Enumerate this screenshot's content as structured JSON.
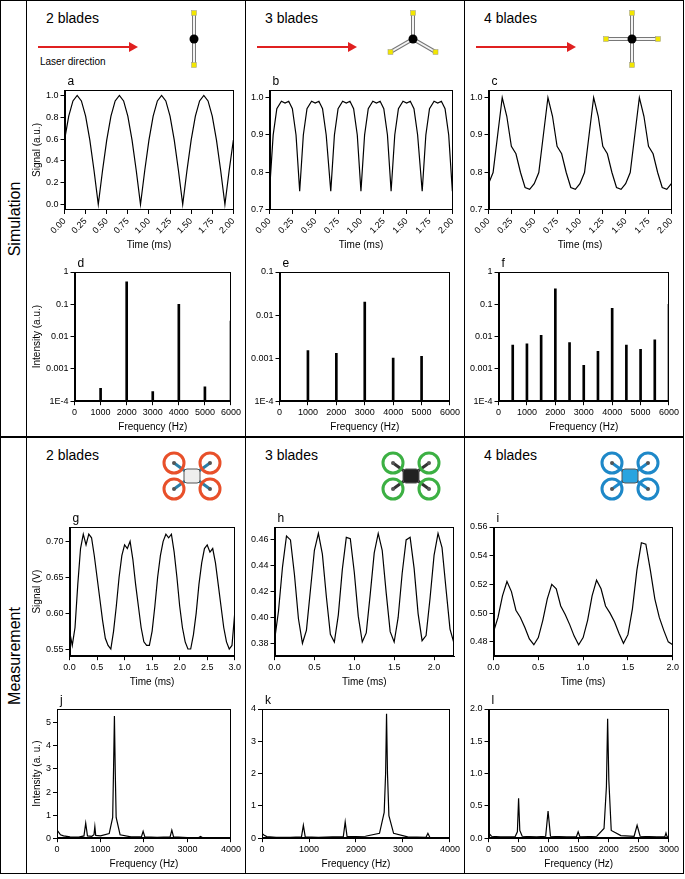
{
  "sections": [
    {
      "label": "Simulation",
      "headers": [
        "2 blades",
        "3 blades",
        "4 blades"
      ],
      "annotation": "Laser direction"
    },
    {
      "label": "Measurement",
      "headers": [
        "2 blades",
        "3 blades",
        "4 blades"
      ]
    }
  ],
  "chart_data": [
    {
      "panel": "a",
      "type": "line",
      "x_label": "Time (ms)",
      "y_label": "Signal (a.u.)",
      "color": "#000000",
      "grid": false,
      "x": [
        0,
        0.05,
        0.1,
        0.15,
        0.2,
        0.25,
        0.3,
        0.35,
        0.4,
        0.45,
        0.5,
        0.55,
        0.6,
        0.65,
        0.7,
        0.75,
        0.8,
        0.85,
        0.9,
        0.95,
        1,
        1.05,
        1.1,
        1.15,
        1.2,
        1.25,
        1.3,
        1.35,
        1.4,
        1.45,
        1.5,
        1.55,
        1.6,
        1.65,
        1.7,
        1.75,
        1.8,
        1.85,
        1.9,
        1.95,
        2
      ],
      "values": [
        0.59,
        0.81,
        0.95,
        1.0,
        0.95,
        0.81,
        0.59,
        0.31,
        0,
        0.31,
        0.59,
        0.81,
        0.95,
        1.0,
        0.95,
        0.81,
        0.59,
        0.31,
        0,
        0.31,
        0.59,
        0.81,
        0.95,
        1.0,
        0.95,
        0.81,
        0.59,
        0.31,
        0,
        0.31,
        0.59,
        0.81,
        0.95,
        1.0,
        0.95,
        0.81,
        0.59,
        0.31,
        0,
        0.31,
        0.59
      ],
      "xlim": [
        0,
        2
      ],
      "xticks": [
        {
          "value": 0,
          "label": "0.00"
        },
        0.25,
        {
          "value": 0.5,
          "label": "0.50"
        },
        0.75,
        {
          "value": 1,
          "label": "1.00"
        },
        1.25,
        {
          "value": 1.5,
          "label": "1.50"
        },
        1.75,
        {
          "value": 2,
          "label": "2.00"
        }
      ],
      "ylim": [
        -0.05,
        1.05
      ],
      "yticks": [
        {
          "value": 0,
          "label": "0.0"
        },
        0.2,
        0.4,
        0.6,
        0.8,
        {
          "value": 1,
          "label": "1.0"
        }
      ]
    },
    {
      "panel": "b",
      "type": "line",
      "x_label": "Time (ms)",
      "color": "#000000",
      "grid": false,
      "x": [
        0,
        0.04,
        0.08,
        0.13,
        0.17,
        0.21,
        0.25,
        0.29,
        0.33,
        0.37,
        0.41,
        0.46,
        0.5,
        0.54,
        0.58,
        0.62,
        0.67,
        0.71,
        0.75,
        0.8,
        0.84,
        0.88,
        0.92,
        0.96,
        1,
        1.04,
        1.08,
        1.13,
        1.17,
        1.21,
        1.25,
        1.29,
        1.33,
        1.37,
        1.41,
        1.46,
        1.5,
        1.54,
        1.58,
        1.62,
        1.67,
        1.71,
        1.75,
        1.8,
        1.84,
        1.88,
        1.92,
        1.96,
        2
      ],
      "values": [
        0.75,
        0.9,
        0.97,
        0.99,
        0.985,
        0.99,
        0.97,
        0.9,
        0.75,
        0.9,
        0.97,
        0.99,
        0.985,
        0.99,
        0.97,
        0.9,
        0.75,
        0.9,
        0.97,
        0.99,
        0.985,
        0.99,
        0.97,
        0.9,
        0.75,
        0.9,
        0.97,
        0.99,
        0.985,
        0.99,
        0.97,
        0.9,
        0.75,
        0.9,
        0.97,
        0.99,
        0.985,
        0.99,
        0.97,
        0.9,
        0.75,
        0.9,
        0.97,
        0.99,
        0.985,
        0.99,
        0.97,
        0.9,
        0.75
      ],
      "xlim": [
        0,
        2
      ],
      "xticks": [
        {
          "value": 0,
          "label": "0.00"
        },
        0.25,
        {
          "value": 0.5,
          "label": "0.50"
        },
        0.75,
        {
          "value": 1,
          "label": "1.00"
        },
        1.25,
        {
          "value": 1.5,
          "label": "1.50"
        },
        1.75,
        {
          "value": 2,
          "label": "2.00"
        }
      ],
      "ylim": [
        0.7,
        1.02
      ],
      "yticks": [
        0.7,
        0.8,
        0.9,
        {
          "value": 1,
          "label": "1.0"
        }
      ]
    },
    {
      "panel": "c",
      "type": "line",
      "x_label": "Time (ms)",
      "color": "#000000",
      "grid": false,
      "x": [
        0,
        0.05,
        0.1,
        0.15,
        0.2,
        0.25,
        0.3,
        0.35,
        0.4,
        0.45,
        0.5,
        0.55,
        0.6,
        0.65,
        0.7,
        0.75,
        0.8,
        0.85,
        0.9,
        0.95,
        1,
        1.05,
        1.1,
        1.15,
        1.2,
        1.25,
        1.3,
        1.35,
        1.4,
        1.45,
        1.5,
        1.55,
        1.6,
        1.65,
        1.7,
        1.75,
        1.8,
        1.85,
        1.9,
        1.95,
        2
      ],
      "values": [
        0.77,
        0.8,
        0.9,
        1.0,
        0.95,
        0.87,
        0.85,
        0.8,
        0.76,
        0.755,
        0.77,
        0.8,
        0.9,
        1.0,
        0.95,
        0.87,
        0.85,
        0.8,
        0.76,
        0.755,
        0.77,
        0.8,
        0.9,
        1.0,
        0.95,
        0.87,
        0.85,
        0.8,
        0.76,
        0.755,
        0.77,
        0.8,
        0.9,
        1.0,
        0.95,
        0.87,
        0.85,
        0.8,
        0.76,
        0.755,
        0.77
      ],
      "xlim": [
        0,
        2
      ],
      "xticks": [
        {
          "value": 0,
          "label": "0.00"
        },
        0.25,
        {
          "value": 0.5,
          "label": "0.50"
        },
        0.75,
        {
          "value": 1,
          "label": "1.00"
        },
        1.25,
        {
          "value": 1.5,
          "label": "1.50"
        },
        1.75,
        {
          "value": 2,
          "label": "2.00"
        }
      ],
      "ylim": [
        0.7,
        1.02
      ],
      "yticks": [
        0.7,
        0.8,
        0.9,
        {
          "value": 1,
          "label": "1.0"
        }
      ]
    },
    {
      "panel": "d",
      "type": "bar",
      "log": "y",
      "x_label": "Frequency (Hz)",
      "y_label": "Intensity (a.u.)",
      "color": "#000000",
      "grid": false,
      "x": [
        1000,
        2000,
        3000,
        4000,
        5000,
        6000
      ],
      "values": [
        0.00025,
        0.5,
        0.0002,
        0.1,
        0.00028,
        0.03
      ],
      "xlim": [
        0,
        6000
      ],
      "xticks": [
        0,
        1000,
        2000,
        3000,
        4000,
        5000,
        6000
      ],
      "ylim": [
        0.0001,
        1
      ],
      "yticks": [
        {
          "value": 0.0001,
          "label": "1E-4"
        },
        0.001,
        0.01,
        0.1,
        1
      ]
    },
    {
      "panel": "e",
      "type": "bar",
      "log": "y",
      "x_label": "Frequency (Hz)",
      "color": "#000000",
      "grid": false,
      "x": [
        1000,
        2000,
        3000,
        4000,
        5000
      ],
      "values": [
        0.0015,
        0.0013,
        0.02,
        0.001,
        0.0011
      ],
      "xlim": [
        0,
        6000
      ],
      "xticks": [
        0,
        1000,
        2000,
        3000,
        4000,
        5000,
        6000
      ],
      "ylim": [
        0.0001,
        0.1
      ],
      "yticks": [
        {
          "value": 0.0001,
          "label": "1E-4"
        },
        0.001,
        0.01,
        0.1
      ]
    },
    {
      "panel": "f",
      "type": "bar",
      "log": "y",
      "x_label": "Frequency (Hz)",
      "color": "#000000",
      "grid": false,
      "x": [
        500,
        1000,
        1500,
        2000,
        2500,
        3000,
        3500,
        4000,
        4500,
        5000,
        5500,
        6000
      ],
      "values": [
        0.0055,
        0.006,
        0.011,
        0.3,
        0.0065,
        0.0013,
        0.0035,
        0.075,
        0.0055,
        0.004,
        0.008,
        0.1
      ],
      "xlim": [
        0,
        6000
      ],
      "xticks": [
        0,
        1000,
        2000,
        3000,
        4000,
        5000,
        6000
      ],
      "ylim": [
        0.0001,
        1
      ],
      "yticks": [
        {
          "value": 0.0001,
          "label": "1E-4"
        },
        0.001,
        0.01,
        0.1,
        1
      ]
    },
    {
      "panel": "g",
      "type": "line",
      "x_label": "Time (ms)",
      "y_label": "Signal (V)",
      "color": "#000000",
      "grid": false,
      "x": [
        0,
        0.05,
        0.1,
        0.15,
        0.2,
        0.25,
        0.3,
        0.35,
        0.4,
        0.45,
        0.5,
        0.55,
        0.6,
        0.65,
        0.7,
        0.75,
        0.8,
        0.85,
        0.9,
        0.95,
        1,
        1.05,
        1.1,
        1.15,
        1.2,
        1.25,
        1.3,
        1.35,
        1.4,
        1.45,
        1.5,
        1.55,
        1.6,
        1.65,
        1.7,
        1.75,
        1.8,
        1.85,
        1.9,
        1.95,
        2,
        2.05,
        2.1,
        2.15,
        2.2,
        2.25,
        2.3,
        2.35,
        2.4,
        2.45,
        2.5,
        2.55,
        2.6,
        2.65,
        2.7,
        2.75,
        2.8,
        2.85,
        2.9,
        2.95,
        3
      ],
      "values": [
        0.575,
        0.555,
        0.58,
        0.64,
        0.69,
        0.71,
        0.695,
        0.71,
        0.705,
        0.68,
        0.65,
        0.62,
        0.59,
        0.565,
        0.555,
        0.55,
        0.575,
        0.61,
        0.65,
        0.68,
        0.695,
        0.69,
        0.7,
        0.675,
        0.64,
        0.61,
        0.58,
        0.56,
        0.555,
        0.555,
        0.575,
        0.61,
        0.65,
        0.68,
        0.7,
        0.71,
        0.705,
        0.71,
        0.685,
        0.65,
        0.61,
        0.58,
        0.56,
        0.55,
        0.55,
        0.57,
        0.6,
        0.64,
        0.67,
        0.69,
        0.695,
        0.685,
        0.69,
        0.67,
        0.64,
        0.61,
        0.58,
        0.56,
        0.55,
        0.555,
        0.6
      ],
      "xlim": [
        0,
        3
      ],
      "xticks": [
        {
          "value": 0,
          "label": "0.0"
        },
        0.5,
        {
          "value": 1,
          "label": "1.0"
        },
        1.5,
        {
          "value": 2,
          "label": "2.0"
        },
        2.5,
        {
          "value": 3,
          "label": "3.0"
        }
      ],
      "ylim": [
        0.54,
        0.72
      ],
      "yticks": [
        0.55,
        {
          "value": 0.6,
          "label": "0.60"
        },
        0.65,
        {
          "value": 0.7,
          "label": "0.70"
        }
      ]
    },
    {
      "panel": "h",
      "type": "line",
      "x_label": "Time (ms)",
      "color": "#000000",
      "grid": false,
      "x": [
        0,
        0.05,
        0.1,
        0.15,
        0.2,
        0.25,
        0.3,
        0.35,
        0.4,
        0.45,
        0.5,
        0.55,
        0.6,
        0.65,
        0.7,
        0.75,
        0.8,
        0.85,
        0.9,
        0.95,
        1,
        1.05,
        1.1,
        1.15,
        1.2,
        1.25,
        1.3,
        1.35,
        1.4,
        1.45,
        1.5,
        1.55,
        1.6,
        1.65,
        1.7,
        1.75,
        1.8,
        1.85,
        1.9,
        1.95,
        2,
        2.05,
        2.1,
        2.15,
        2.2,
        2.25
      ],
      "values": [
        0.382,
        0.405,
        0.439,
        0.463,
        0.46,
        0.433,
        0.399,
        0.38,
        0.39,
        0.421,
        0.452,
        0.465,
        0.449,
        0.416,
        0.387,
        0.381,
        0.402,
        0.437,
        0.462,
        0.461,
        0.435,
        0.401,
        0.381,
        0.388,
        0.418,
        0.45,
        0.465,
        0.452,
        0.419,
        0.389,
        0.381,
        0.4,
        0.434,
        0.46,
        0.462,
        0.438,
        0.403,
        0.382,
        0.386,
        0.415,
        0.448,
        0.465,
        0.454,
        0.422,
        0.391,
        0.38
      ],
      "xlim": [
        0,
        2.25
      ],
      "xticks": [
        {
          "value": 0,
          "label": "0.0"
        },
        0.5,
        {
          "value": 1,
          "label": "1.0"
        },
        1.5,
        {
          "value": 2,
          "label": "2.0"
        }
      ],
      "ylim": [
        0.37,
        0.47
      ],
      "yticks": [
        0.38,
        {
          "value": 0.4,
          "label": "0.40"
        },
        0.42,
        0.44,
        0.46
      ]
    },
    {
      "panel": "i",
      "type": "line",
      "x_label": "Time (ms)",
      "color": "#000000",
      "grid": false,
      "x": [
        0,
        0.05,
        0.1,
        0.15,
        0.2,
        0.25,
        0.3,
        0.35,
        0.4,
        0.45,
        0.5,
        0.55,
        0.6,
        0.65,
        0.7,
        0.75,
        0.8,
        0.85,
        0.9,
        0.95,
        1,
        1.05,
        1.1,
        1.15,
        1.2,
        1.25,
        1.3,
        1.35,
        1.4,
        1.45,
        1.5,
        1.55,
        1.6,
        1.65,
        1.7,
        1.75,
        1.8,
        1.85,
        1.9,
        1.95,
        2
      ],
      "values": [
        0.487,
        0.497,
        0.512,
        0.522,
        0.515,
        0.502,
        0.497,
        0.49,
        0.482,
        0.478,
        0.483,
        0.495,
        0.51,
        0.52,
        0.517,
        0.505,
        0.499,
        0.492,
        0.484,
        0.478,
        0.483,
        0.495,
        0.512,
        0.523,
        0.517,
        0.505,
        0.5,
        0.494,
        0.486,
        0.479,
        0.485,
        0.503,
        0.53,
        0.549,
        0.548,
        0.53,
        0.51,
        0.497,
        0.488,
        0.48,
        0.478
      ],
      "xlim": [
        0,
        2
      ],
      "xticks": [
        {
          "value": 0,
          "label": "0.0"
        },
        0.5,
        {
          "value": 1,
          "label": "1.0"
        },
        1.5,
        {
          "value": 2,
          "label": "2.0"
        }
      ],
      "ylim": [
        0.47,
        0.56
      ],
      "yticks": [
        0.48,
        {
          "value": 0.5,
          "label": "0.50"
        },
        0.52,
        0.54,
        0.56
      ]
    },
    {
      "panel": "j",
      "type": "line",
      "x_label": "Frequency (Hz)",
      "y_label": "Intensity (a. u.)",
      "color": "#000000",
      "grid": false,
      "x": [
        0,
        40,
        80,
        150,
        300,
        500,
        620,
        660,
        700,
        800,
        850,
        870,
        890,
        1000,
        1200,
        1280,
        1300,
        1320,
        1340,
        1360,
        1450,
        1700,
        1940,
        1980,
        2020,
        2300,
        2600,
        2640,
        2680,
        3000,
        3260,
        3300,
        3340,
        3700,
        4000
      ],
      "values": [
        0.35,
        0.25,
        0.15,
        0.1,
        0.06,
        0.05,
        0.1,
        0.65,
        0.1,
        0.08,
        0.15,
        0.5,
        0.12,
        0.1,
        0.2,
        0.9,
        3.0,
        5.3,
        2.8,
        0.9,
        0.15,
        0.06,
        0.06,
        0.3,
        0.06,
        0.04,
        0.06,
        0.35,
        0.06,
        0.03,
        0.03,
        0.08,
        0.03,
        0.02,
        0.02
      ],
      "xlim": [
        0,
        4000
      ],
      "xticks": [
        0,
        1000,
        2000,
        3000,
        4000
      ],
      "ylim": [
        0,
        5.6
      ],
      "yticks": [
        0,
        1,
        2,
        3,
        4,
        5
      ]
    },
    {
      "panel": "k",
      "type": "line",
      "x_label": "Frequency (Hz)",
      "color": "#000000",
      "grid": false,
      "x": [
        0,
        40,
        100,
        300,
        600,
        840,
        880,
        920,
        1200,
        1500,
        1730,
        1770,
        1810,
        2200,
        2500,
        2600,
        2630,
        2650,
        2670,
        2700,
        2800,
        3100,
        3490,
        3530,
        3570,
        3800,
        4000
      ],
      "values": [
        0.15,
        0.1,
        0.05,
        0.03,
        0.03,
        0.04,
        0.4,
        0.04,
        0.03,
        0.04,
        0.05,
        0.5,
        0.05,
        0.06,
        0.15,
        0.8,
        2.0,
        3.85,
        2.0,
        0.7,
        0.15,
        0.04,
        0.03,
        0.15,
        0.03,
        0.02,
        0.02
      ],
      "xlim": [
        0,
        4000
      ],
      "xticks": [
        0,
        1000,
        2000,
        3000,
        4000
      ],
      "ylim": [
        0,
        4
      ],
      "yticks": [
        0,
        1,
        2,
        3,
        4
      ]
    },
    {
      "panel": "l",
      "type": "line",
      "x_label": "Frequency (Hz)",
      "color": "#000000",
      "grid": false,
      "x": [
        0,
        50,
        200,
        440,
        480,
        500,
        520,
        560,
        800,
        950,
        990,
        1030,
        1300,
        1460,
        1490,
        1520,
        1800,
        1920,
        1960,
        1980,
        2000,
        2040,
        2200,
        2420,
        2470,
        2520,
        2800,
        2930,
        2950,
        2970,
        3000
      ],
      "values": [
        0.08,
        0.03,
        0.02,
        0.02,
        0.1,
        0.62,
        0.12,
        0.03,
        0.02,
        0.03,
        0.42,
        0.03,
        0.02,
        0.02,
        0.1,
        0.02,
        0.03,
        0.15,
        0.8,
        1.85,
        0.9,
        0.12,
        0.04,
        0.03,
        0.2,
        0.03,
        0.02,
        0.02,
        0.08,
        0.02,
        0.02
      ],
      "xlim": [
        0,
        3000
      ],
      "xticks": [
        0,
        500,
        1000,
        1500,
        2000,
        2500,
        3000
      ],
      "ylim": [
        0,
        2
      ],
      "yticks": [
        {
          "value": 0,
          "label": "0.0"
        },
        0.5,
        {
          "value": 1,
          "label": "1.0"
        },
        1.5,
        {
          "value": 2,
          "label": "2.0"
        }
      ]
    }
  ]
}
